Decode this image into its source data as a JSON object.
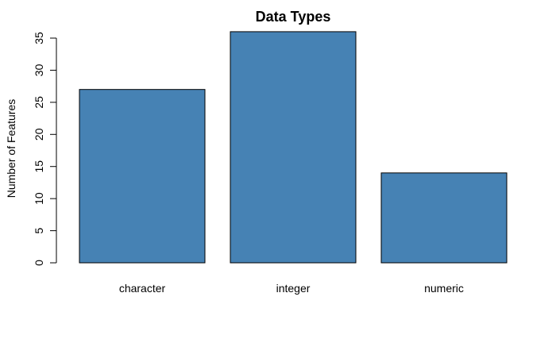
{
  "chart_data": {
    "type": "bar",
    "title": "Data Types",
    "xlabel": "",
    "ylabel": "Number of Features",
    "categories": [
      "character",
      "integer",
      "numeric"
    ],
    "values": [
      27,
      36,
      14
    ],
    "ylim": [
      0,
      35
    ],
    "yticks": [
      "0",
      "5",
      "10",
      "15",
      "20",
      "25",
      "30",
      "35"
    ],
    "bar_color": "#4682b4",
    "bar_border_color": "#000000",
    "grid": false,
    "legend": "none"
  }
}
